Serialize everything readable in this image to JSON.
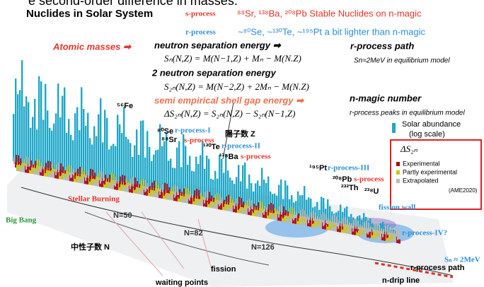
{
  "header": {
    "cut_line": "e second-order difference in masses.",
    "title": "Nuclides in Solar System"
  },
  "process_lines": [
    {
      "tag": "s-process",
      "text": "⁸⁸Sr, ¹³⁸Ba, ²⁰⁸Pb  Stable Nuclides on n-magic"
    },
    {
      "tag": "r-process",
      "text": "~⁸⁰Se, ~¹³⁰Te, ~¹⁹⁵Pt   a bit lighter  than n-magic"
    }
  ],
  "definitions": {
    "atomic_masses": "Atomic masses ➡",
    "sn_label": "neutron separation energy ➡",
    "sn_eq": "Sₙ(N,Z) = M(N−1,Z) + Mₙ − M(N.Z)",
    "s2n_label": "2 neutron separation energy",
    "s2n_eq": "S₂ₙ(N,Z) = M(N−2,Z) + 2Mₙ − M(N.Z)",
    "gap_label": "semi empirical shell gap energy  ➡",
    "gap_eq": "ΔS₂ₙ(N,Z) = S₂ₙ(N,Z) − S₂ₙ(N−1,Z)"
  },
  "notes": {
    "rpath_title": "r-process path",
    "rpath_text": "Sn≈2MeV in equilibrium model",
    "magic_title": "n-magic number",
    "magic_text": "r-process peaks in equilibrium model"
  },
  "legend": {
    "abundance": "Solar abundance",
    "abundance_scale": "(log scale)",
    "title": "ΔS₂ₙ",
    "items": [
      "Experimental",
      "Partly experimental",
      "Extrapolated"
    ],
    "source": "(AME2020)"
  },
  "labels": {
    "fe": "⁵⁶Fe",
    "se": "⁸⁰Se",
    "r1": "r-process-I",
    "sr": "⁸⁸Sr",
    "s1": "s-process",
    "te": "¹³⁰Te",
    "r2": "r-process-II",
    "ba": "¹³⁸Ba",
    "s2": "s-process",
    "pt": "¹⁹⁵Pt",
    "r3": "r-process-III",
    "pb": "²⁰⁸Pb",
    "s3": "s-process",
    "th": "²³²Th",
    "u": "²³⁸U",
    "fission_wall": "fission wall",
    "r4": "r-process-IV?",
    "big_bang": "Big Bang",
    "stellar": "Stellar Burning",
    "z_axis": "陽子数 Z",
    "n_axis": "中性子数 N",
    "fission": "fission",
    "waiting": "waiting points",
    "sn2": "Sₙ ≈ 2MeV",
    "rpath": "r-process path",
    "drip": "n-drip line",
    "n50": "N=50",
    "n82": "N=82",
    "n126": "N=126"
  }
}
